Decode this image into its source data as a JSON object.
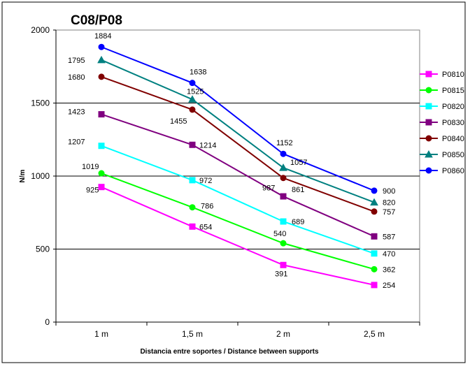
{
  "chart_data": {
    "type": "line",
    "title": "C08/P08",
    "xlabel": "Distancia entre soportes / Distance between supports",
    "ylabel": "N/m",
    "categories": [
      "1 m",
      "1,5 m",
      "2 m",
      "2,5 m"
    ],
    "ylim": [
      0,
      2000
    ],
    "yticks": [
      0,
      500,
      1000,
      1500,
      2000
    ],
    "grid": "horizontal",
    "legend_position": "right",
    "series": [
      {
        "name": "P0810",
        "values": [
          925,
          654,
          391,
          254
        ],
        "color": "#ff00ff",
        "marker": "square"
      },
      {
        "name": "P0815",
        "values": [
          1019,
          786,
          540,
          362
        ],
        "color": "#00ff00",
        "marker": "circle"
      },
      {
        "name": "P0820",
        "values": [
          1207,
          972,
          689,
          470
        ],
        "color": "#00ffff",
        "marker": "square"
      },
      {
        "name": "P0830",
        "values": [
          1423,
          1214,
          861,
          587
        ],
        "color": "#800080",
        "marker": "square"
      },
      {
        "name": "P0840",
        "values": [
          1680,
          1455,
          987,
          757
        ],
        "color": "#800000",
        "marker": "circle"
      },
      {
        "name": "P0850",
        "values": [
          1795,
          1525,
          1057,
          820
        ],
        "color": "#008080",
        "marker": "triangle"
      },
      {
        "name": "P0860",
        "values": [
          1884,
          1638,
          1152,
          900
        ],
        "color": "#0000ff",
        "marker": "circle"
      }
    ]
  }
}
